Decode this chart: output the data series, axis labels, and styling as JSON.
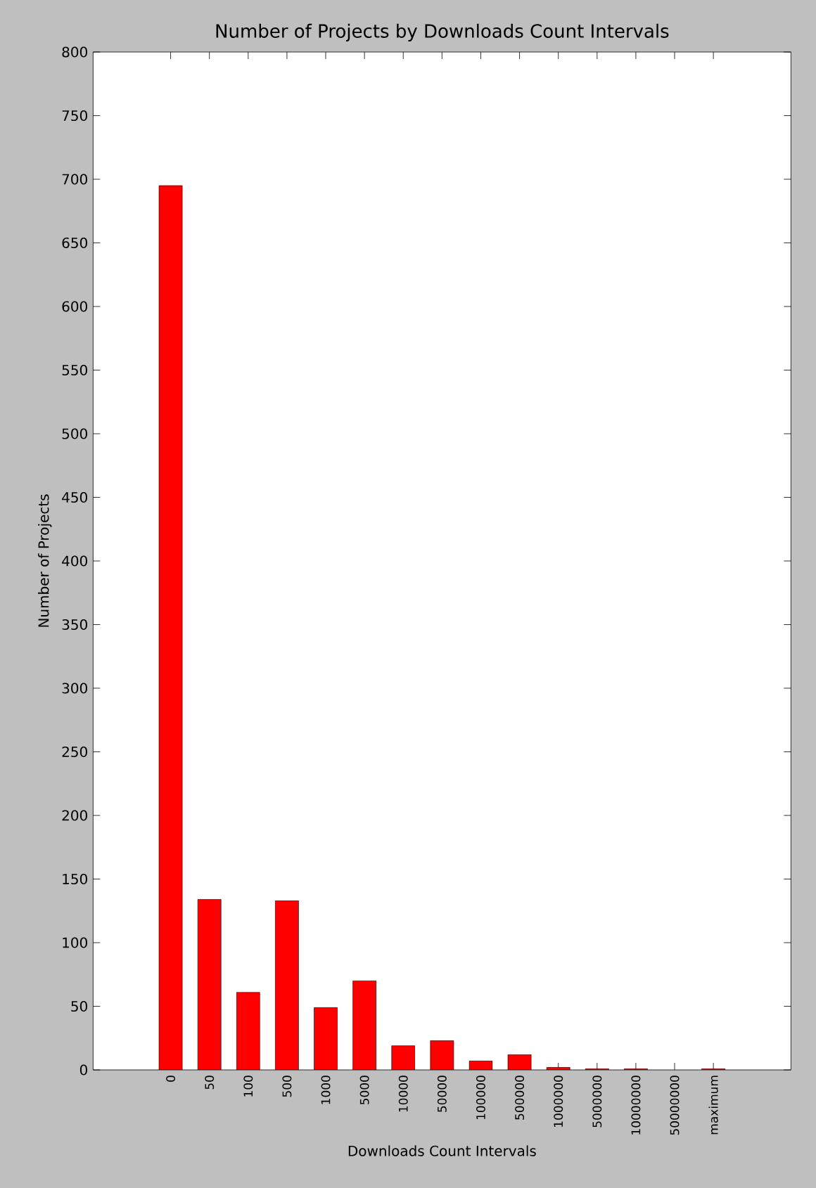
{
  "chart_data": {
    "type": "bar",
    "title": "Number of Projects by Downloads Count Intervals",
    "xlabel": "Downloads Count Intervals",
    "ylabel": "Number of Projects",
    "categories": [
      "0",
      "50",
      "100",
      "500",
      "1000",
      "5000",
      "10000",
      "50000",
      "100000",
      "500000",
      "1000000",
      "5000000",
      "10000000",
      "50000000",
      "maximum"
    ],
    "values": [
      695,
      134,
      61,
      133,
      49,
      70,
      19,
      23,
      7,
      12,
      2,
      1,
      1,
      0,
      1
    ],
    "color": "#ff0000",
    "ylim": [
      0,
      800
    ],
    "yticks": [
      0,
      50,
      100,
      150,
      200,
      250,
      300,
      350,
      400,
      450,
      500,
      550,
      600,
      650,
      700,
      750,
      800
    ],
    "grid": false
  }
}
